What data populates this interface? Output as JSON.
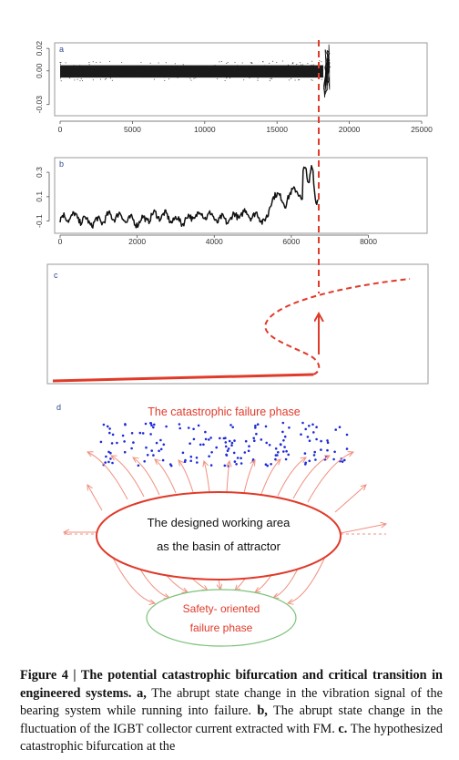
{
  "panels": {
    "a": {
      "letter": "a",
      "chart_data": {
        "type": "scatter",
        "x_ticks": [
          "0",
          "5000",
          "10000",
          "15000",
          "20000",
          "25000"
        ],
        "y_ticks": [
          "-0.03",
          "0.00",
          "0.02"
        ],
        "xlim": [
          0,
          25000
        ],
        "ylim": [
          -0.04,
          0.025
        ],
        "failure_index": 18500
      }
    },
    "b": {
      "letter": "b",
      "chart_data": {
        "type": "line",
        "x_ticks": [
          "0",
          "2000",
          "4000",
          "6000",
          "8000"
        ],
        "y_ticks": [
          "-0.1",
          "0.1",
          "0.3"
        ],
        "xlim": [
          -200,
          9700
        ],
        "ylim": [
          -0.2,
          0.42
        ],
        "failure_index": 6700
      }
    },
    "c": {
      "letter": "c"
    },
    "d": {
      "letter": "d",
      "catastrophic_label": "The catastrophic failure phase",
      "working_area_line1": "The designed working area",
      "working_area_line2": "as the basin of attractor",
      "safety_line1": "Safety- oriented",
      "safety_line2": "failure phase"
    }
  },
  "colors": {
    "red": "#e03a2a",
    "red_dark": "#d93b2b",
    "green": "#7cc27a",
    "blue": "#1f2bd8",
    "arrow_light": "#f09080"
  },
  "caption": {
    "label": "Figure 4 | The potential catastrophic bifurcation and critical transition in engineered systems.",
    "a_letter": "a,",
    "a_text": "The abrupt state change in the vibration signal of the bearing system while running into failure.",
    "b_letter": "b,",
    "b_text": "The abrupt state change in the fluctuation of the IGBT collector current extracted with FM.",
    "c_letter": "c.",
    "c_text": "The hypothesized catastrophic bifurcation at the"
  }
}
